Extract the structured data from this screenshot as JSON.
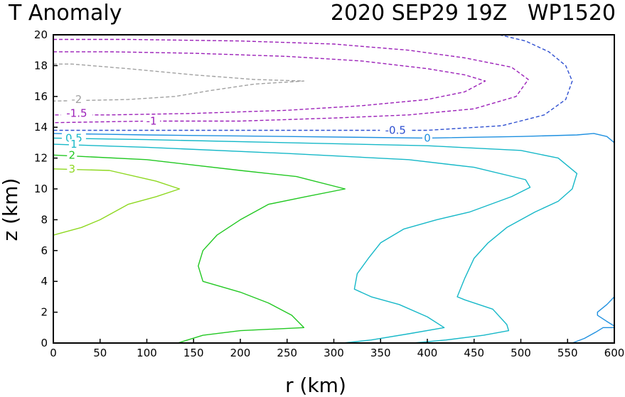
{
  "chart_data": {
    "type": "contour",
    "title_left": "T Anomaly",
    "title_right": "2020 SEP29 19Z   WP1520",
    "xlabel": "r (km)",
    "ylabel": "z (km)",
    "xlim": [
      0,
      600
    ],
    "ylim": [
      0,
      20
    ],
    "xticks": [
      "0",
      "50",
      "100",
      "150",
      "200",
      "250",
      "300",
      "350",
      "400",
      "450",
      "500",
      "550",
      "600"
    ],
    "yticks": [
      "0",
      "2",
      "4",
      "6",
      "8",
      "10",
      "12",
      "14",
      "16",
      "18",
      "20"
    ],
    "contours": [
      {
        "level": "-2",
        "color": "#a0a0a0",
        "dashed": true,
        "label": {
          "text": "-2",
          "x": 25,
          "y": 15.8
        },
        "paths": [
          [
            [
              0,
              18.1
            ],
            [
              20,
              18.1
            ],
            [
              80,
              17.8
            ],
            [
              150,
              17.4
            ],
            [
              215,
              17.1
            ],
            [
              268,
              17.0
            ],
            [
              215,
              16.8
            ],
            [
              170,
              16.4
            ],
            [
              130,
              16.0
            ],
            [
              80,
              15.8
            ],
            [
              0,
              15.7
            ]
          ]
        ]
      },
      {
        "level": "-1.5",
        "color": "#9b1fb8",
        "dashed": true,
        "label": {
          "text": "-1.5",
          "x": 25,
          "y": 14.9
        },
        "paths": [
          [
            [
              0,
              18.9
            ],
            [
              60,
              18.9
            ],
            [
              150,
              18.8
            ],
            [
              250,
              18.6
            ],
            [
              330,
              18.3
            ],
            [
              400,
              17.8
            ],
            [
              440,
              17.4
            ],
            [
              462,
              17.0
            ],
            [
              440,
              16.3
            ],
            [
              400,
              15.8
            ],
            [
              330,
              15.4
            ],
            [
              250,
              15.1
            ],
            [
              150,
              14.9
            ],
            [
              60,
              14.8
            ],
            [
              0,
              14.8
            ]
          ]
        ]
      },
      {
        "level": "-1",
        "color": "#9b1fb8",
        "dashed": true,
        "label": {
          "text": "-1",
          "x": 105,
          "y": 14.4
        },
        "paths": [
          [
            [
              0,
              19.7
            ],
            [
              80,
              19.7
            ],
            [
              200,
              19.6
            ],
            [
              300,
              19.4
            ],
            [
              380,
              19.0
            ],
            [
              440,
              18.5
            ],
            [
              490,
              17.9
            ],
            [
              508,
              17.1
            ],
            [
              495,
              16.0
            ],
            [
              450,
              15.2
            ],
            [
              380,
              14.8
            ],
            [
              300,
              14.6
            ],
            [
              200,
              14.4
            ],
            [
              100,
              14.4
            ],
            [
              0,
              14.3
            ]
          ]
        ]
      },
      {
        "level": "-0.5",
        "color": "#2e4fd0",
        "dashed": true,
        "label": {
          "text": "-0.5",
          "x": 366,
          "y": 13.8
        },
        "paths": [
          [
            [
              477,
              20.0
            ],
            [
              505,
              19.6
            ],
            [
              530,
              18.9
            ],
            [
              548,
              18.0
            ],
            [
              555,
              17.0
            ],
            [
              548,
              15.8
            ],
            [
              525,
              14.8
            ],
            [
              480,
              14.1
            ],
            [
              400,
              13.8
            ],
            [
              300,
              13.8
            ],
            [
              150,
              13.8
            ],
            [
              0,
              13.8
            ]
          ]
        ]
      },
      {
        "level": "0",
        "color": "#1e90e0",
        "dashed": false,
        "label": {
          "text": "0",
          "x": 400,
          "y": 13.3
        },
        "paths": [
          [
            [
              0,
              13.6
            ],
            [
              100,
              13.5
            ],
            [
              250,
              13.4
            ],
            [
              400,
              13.3
            ],
            [
              500,
              13.4
            ],
            [
              560,
              13.5
            ],
            [
              578,
              13.6
            ],
            [
              592,
              13.4
            ],
            [
              600,
              13.0
            ]
          ],
          [
            [
              600,
              3.0
            ],
            [
              592,
              2.5
            ],
            [
              582,
              2.0
            ],
            [
              582,
              1.8
            ],
            [
              592,
              1.4
            ],
            [
              600,
              1.1
            ]
          ],
          [
            [
              555,
              0.0
            ],
            [
              568,
              0.3
            ],
            [
              580,
              0.7
            ],
            [
              588,
              1.0
            ],
            [
              600,
              1.0
            ]
          ]
        ]
      },
      {
        "level": "0.5",
        "color": "#16b8c8",
        "dashed": false,
        "label": {
          "text": "0.5",
          "x": 22,
          "y": 13.3
        },
        "paths": [
          [
            [
              0,
              13.3
            ],
            [
              100,
              13.2
            ],
            [
              250,
              13.0
            ],
            [
              400,
              12.8
            ],
            [
              500,
              12.5
            ],
            [
              540,
              12.0
            ],
            [
              560,
              11.0
            ],
            [
              555,
              10.0
            ],
            [
              540,
              9.2
            ],
            [
              515,
              8.5
            ],
            [
              485,
              7.5
            ],
            [
              465,
              6.5
            ],
            [
              450,
              5.5
            ],
            [
              440,
              4.2
            ],
            [
              432,
              3.0
            ],
            [
              440,
              2.8
            ],
            [
              470,
              2.2
            ],
            [
              485,
              1.2
            ],
            [
              487,
              0.8
            ],
            [
              460,
              0.5
            ],
            [
              420,
              0.2
            ],
            [
              385,
              0.0
            ]
          ]
        ]
      },
      {
        "level": "1",
        "color": "#16b8c8",
        "dashed": false,
        "label": {
          "text": "1",
          "x": 22,
          "y": 12.9
        },
        "paths": [
          [
            [
              0,
              12.9
            ],
            [
              100,
              12.7
            ],
            [
              250,
              12.3
            ],
            [
              380,
              11.9
            ],
            [
              450,
              11.4
            ],
            [
              505,
              10.6
            ],
            [
              510,
              10.1
            ],
            [
              490,
              9.5
            ],
            [
              445,
              8.5
            ],
            [
              410,
              8.0
            ],
            [
              375,
              7.4
            ],
            [
              350,
              6.5
            ],
            [
              337,
              5.5
            ],
            [
              325,
              4.5
            ],
            [
              322,
              3.5
            ],
            [
              340,
              3.0
            ],
            [
              370,
              2.5
            ],
            [
              400,
              1.7
            ],
            [
              418,
              1.0
            ],
            [
              380,
              0.6
            ],
            [
              340,
              0.2
            ],
            [
              310,
              0.0
            ]
          ]
        ]
      },
      {
        "level": "2",
        "color": "#22c822",
        "dashed": false,
        "label": {
          "text": "2",
          "x": 20,
          "y": 12.2
        },
        "paths": [
          [
            [
              0,
              12.2
            ],
            [
              100,
              11.9
            ],
            [
              200,
              11.2
            ],
            [
              260,
              10.8
            ],
            [
              312,
              10.0
            ],
            [
              270,
              9.5
            ],
            [
              230,
              9.0
            ],
            [
              200,
              8.0
            ],
            [
              175,
              7.0
            ],
            [
              160,
              6.0
            ],
            [
              155,
              5.0
            ],
            [
              160,
              4.0
            ],
            [
              200,
              3.3
            ],
            [
              230,
              2.6
            ],
            [
              255,
              1.8
            ],
            [
              268,
              1.0
            ],
            [
              200,
              0.8
            ],
            [
              160,
              0.5
            ],
            [
              133,
              0.0
            ]
          ]
        ]
      },
      {
        "level": "3",
        "color": "#8ed820",
        "dashed": false,
        "label": {
          "text": "3",
          "x": 20,
          "y": 11.3
        },
        "paths": [
          [
            [
              0,
              11.3
            ],
            [
              60,
              11.2
            ],
            [
              110,
              10.5
            ],
            [
              135,
              10.0
            ],
            [
              110,
              9.5
            ],
            [
              80,
              9.0
            ],
            [
              50,
              8.0
            ],
            [
              30,
              7.5
            ],
            [
              0,
              7.0
            ]
          ]
        ]
      }
    ]
  }
}
